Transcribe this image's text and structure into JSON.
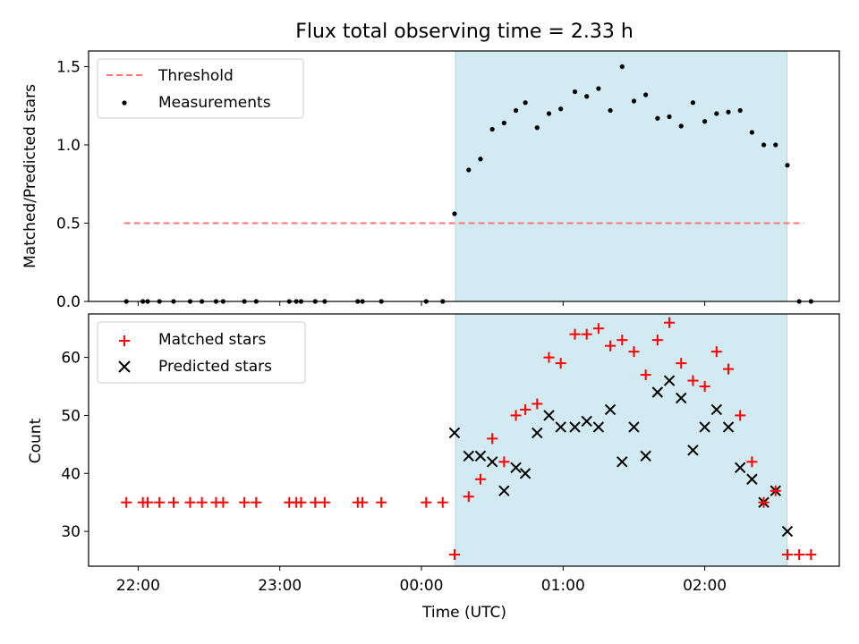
{
  "figure": {
    "title": "Flux total observing time = 2.33 h"
  },
  "chart_data": [
    {
      "type": "scatter",
      "panel": "top",
      "ylabel": "Matched/Predicted stars",
      "ylim": [
        0,
        1.6
      ],
      "yticks": [
        0.0,
        0.5,
        1.0,
        1.5
      ],
      "ytick_labels": [
        "0.0",
        "0.5",
        "1.0",
        "1.5"
      ],
      "xlim_hours": [
        -2.35,
        2.95
      ],
      "shaded_span_hours": [
        0.24,
        2.58
      ],
      "shade_color": "#add8e6",
      "legend_position": "upper left",
      "threshold": {
        "name": "Threshold",
        "value": 0.5,
        "x_range_hours": [
          -2.1,
          2.7
        ],
        "color": "#ff7777"
      },
      "series": [
        {
          "name": "Measurements",
          "color": "#000000",
          "points": [
            [
              "21:55",
              0
            ],
            [
              "22:02",
              0
            ],
            [
              "22:04",
              0
            ],
            [
              "22:09",
              0
            ],
            [
              "22:15",
              0
            ],
            [
              "22:22",
              0
            ],
            [
              "22:27",
              0
            ],
            [
              "22:33",
              0
            ],
            [
              "22:36",
              0
            ],
            [
              "22:45",
              0
            ],
            [
              "22:50",
              0
            ],
            [
              "23:04",
              0
            ],
            [
              "23:07",
              0
            ],
            [
              "23:09",
              0
            ],
            [
              "23:15",
              0
            ],
            [
              "23:19",
              0
            ],
            [
              "23:33",
              0
            ],
            [
              "23:35",
              0
            ],
            [
              "23:43",
              0
            ],
            [
              "00:02",
              0
            ],
            [
              "00:09",
              0
            ],
            [
              "00:14",
              0.56
            ],
            [
              "00:20",
              0.84
            ],
            [
              "00:25",
              0.91
            ],
            [
              "00:30",
              1.1
            ],
            [
              "00:35",
              1.14
            ],
            [
              "00:40",
              1.22
            ],
            [
              "00:44",
              1.27
            ],
            [
              "00:49",
              1.11
            ],
            [
              "00:54",
              1.2
            ],
            [
              "00:59",
              1.23
            ],
            [
              "01:05",
              1.34
            ],
            [
              "01:10",
              1.31
            ],
            [
              "01:15",
              1.36
            ],
            [
              "01:20",
              1.22
            ],
            [
              "01:25",
              1.5
            ],
            [
              "01:30",
              1.28
            ],
            [
              "01:35",
              1.32
            ],
            [
              "01:40",
              1.17
            ],
            [
              "01:45",
              1.18
            ],
            [
              "01:50",
              1.12
            ],
            [
              "01:55",
              1.27
            ],
            [
              "02:00",
              1.15
            ],
            [
              "02:05",
              1.2
            ],
            [
              "02:10",
              1.21
            ],
            [
              "02:15",
              1.22
            ],
            [
              "02:20",
              1.08
            ],
            [
              "02:25",
              1.0
            ],
            [
              "02:30",
              1.0
            ],
            [
              "02:35",
              0.87
            ],
            [
              "02:40",
              0
            ],
            [
              "02:45",
              0
            ]
          ]
        }
      ]
    },
    {
      "type": "scatter",
      "panel": "bottom",
      "xlabel": "Time (UTC)",
      "ylabel": "Count",
      "ylim": [
        24,
        67.5
      ],
      "yticks": [
        30,
        40,
        50,
        60
      ],
      "ytick_labels": [
        "30",
        "40",
        "50",
        "60"
      ],
      "xlim_hours": [
        -2.35,
        2.95
      ],
      "xticks_hours": [
        -2,
        -1,
        0,
        1,
        2
      ],
      "xtick_labels": [
        "22:00",
        "23:00",
        "00:00",
        "01:00",
        "02:00"
      ],
      "shaded_span_hours": [
        0.24,
        2.58
      ],
      "shade_color": "#add8e6",
      "legend_position": "upper left",
      "series": [
        {
          "name": "Matched stars",
          "marker": "plus",
          "color": "#ff0000",
          "points": [
            [
              "21:55",
              35
            ],
            [
              "22:02",
              35
            ],
            [
              "22:04",
              35
            ],
            [
              "22:09",
              35
            ],
            [
              "22:15",
              35
            ],
            [
              "22:22",
              35
            ],
            [
              "22:27",
              35
            ],
            [
              "22:33",
              35
            ],
            [
              "22:36",
              35
            ],
            [
              "22:45",
              35
            ],
            [
              "22:50",
              35
            ],
            [
              "23:04",
              35
            ],
            [
              "23:07",
              35
            ],
            [
              "23:09",
              35
            ],
            [
              "23:15",
              35
            ],
            [
              "23:19",
              35
            ],
            [
              "23:33",
              35
            ],
            [
              "23:35",
              35
            ],
            [
              "23:43",
              35
            ],
            [
              "00:02",
              35
            ],
            [
              "00:09",
              35
            ],
            [
              "00:14",
              26
            ],
            [
              "00:20",
              36
            ],
            [
              "00:25",
              39
            ],
            [
              "00:30",
              46
            ],
            [
              "00:35",
              42
            ],
            [
              "00:40",
              50
            ],
            [
              "00:44",
              51
            ],
            [
              "00:49",
              52
            ],
            [
              "00:54",
              60
            ],
            [
              "00:59",
              59
            ],
            [
              "01:05",
              64
            ],
            [
              "01:10",
              64
            ],
            [
              "01:15",
              65
            ],
            [
              "01:20",
              62
            ],
            [
              "01:25",
              63
            ],
            [
              "01:30",
              61
            ],
            [
              "01:35",
              57
            ],
            [
              "01:40",
              63
            ],
            [
              "01:45",
              66
            ],
            [
              "01:50",
              59
            ],
            [
              "01:55",
              56
            ],
            [
              "02:00",
              55
            ],
            [
              "02:05",
              61
            ],
            [
              "02:10",
              58
            ],
            [
              "02:15",
              50
            ],
            [
              "02:20",
              42
            ],
            [
              "02:25",
              35
            ],
            [
              "02:30",
              37
            ],
            [
              "02:35",
              26
            ],
            [
              "02:40",
              26
            ],
            [
              "02:45",
              26
            ]
          ]
        },
        {
          "name": "Predicted stars",
          "marker": "x",
          "color": "#000000",
          "points": [
            [
              "00:14",
              47
            ],
            [
              "00:20",
              43
            ],
            [
              "00:25",
              43
            ],
            [
              "00:30",
              42
            ],
            [
              "00:35",
              37
            ],
            [
              "00:40",
              41
            ],
            [
              "00:44",
              40
            ],
            [
              "00:49",
              47
            ],
            [
              "00:54",
              50
            ],
            [
              "00:59",
              48
            ],
            [
              "01:05",
              48
            ],
            [
              "01:10",
              49
            ],
            [
              "01:15",
              48
            ],
            [
              "01:20",
              51
            ],
            [
              "01:25",
              42
            ],
            [
              "01:30",
              48
            ],
            [
              "01:35",
              43
            ],
            [
              "01:40",
              54
            ],
            [
              "01:45",
              56
            ],
            [
              "01:50",
              53
            ],
            [
              "01:55",
              44
            ],
            [
              "02:00",
              48
            ],
            [
              "02:05",
              51
            ],
            [
              "02:10",
              48
            ],
            [
              "02:15",
              41
            ],
            [
              "02:20",
              39
            ],
            [
              "02:25",
              35
            ],
            [
              "02:30",
              37
            ],
            [
              "02:35",
              30
            ]
          ]
        }
      ]
    }
  ]
}
